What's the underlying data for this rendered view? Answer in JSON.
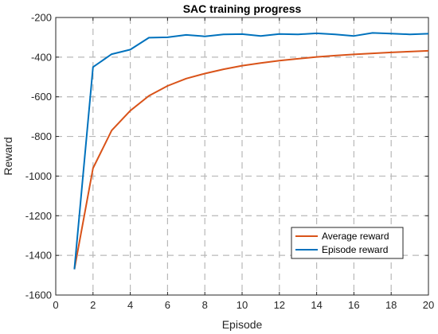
{
  "chart_data": {
    "type": "line",
    "title": "SAC training progress",
    "xlabel": "Episode",
    "ylabel": "Reward",
    "xlim": [
      0,
      20
    ],
    "ylim": [
      -1600,
      -200
    ],
    "xticks": [
      0,
      2,
      4,
      6,
      8,
      10,
      12,
      14,
      16,
      18,
      20
    ],
    "yticks": [
      -1600,
      -1400,
      -1200,
      -1000,
      -800,
      -600,
      -400,
      -200
    ],
    "grid": true,
    "legend_position": "bottom-right",
    "series": [
      {
        "name": "Average reward",
        "color": "#D95319",
        "x": [
          1,
          2,
          3,
          4,
          5,
          6,
          7,
          8,
          9,
          10,
          11,
          12,
          13,
          14,
          15,
          16,
          17,
          18,
          19,
          20
        ],
        "y": [
          -1470,
          -960,
          -770,
          -670,
          -595,
          -545,
          -508,
          -483,
          -461,
          -443,
          -430,
          -418,
          -408,
          -399,
          -392,
          -386,
          -381,
          -376,
          -372,
          -368
        ]
      },
      {
        "name": "Episode reward",
        "color": "#0072BD",
        "x": [
          1,
          2,
          3,
          4,
          5,
          6,
          7,
          8,
          9,
          10,
          11,
          12,
          13,
          14,
          15,
          16,
          17,
          18,
          19,
          20
        ],
        "y": [
          -1470,
          -450,
          -385,
          -362,
          -302,
          -300,
          -288,
          -295,
          -285,
          -284,
          -293,
          -283,
          -285,
          -280,
          -285,
          -293,
          -278,
          -281,
          -285,
          -282
        ]
      }
    ]
  }
}
